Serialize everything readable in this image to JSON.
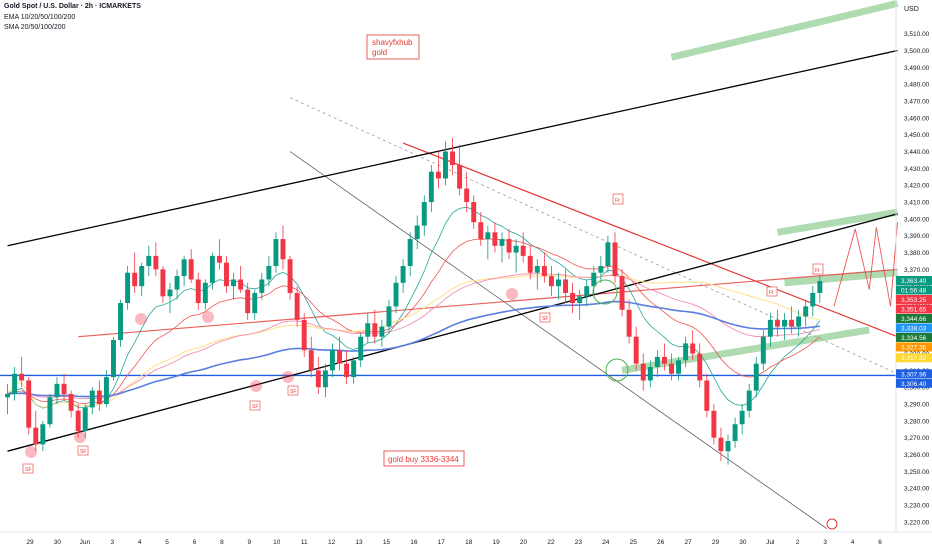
{
  "header": {
    "symbol_title": "Gold Spot / U.S. Dollar · 2h · ICMARKETS",
    "indicator_ema": "EMA 10/20/50/100/200",
    "indicator_sma": "SMA 20/50/100/200"
  },
  "currency": "USD",
  "annotations": {
    "author_line1": "shavyfxhub",
    "author_line2": "gold",
    "trade_note": "gold buy 3336-3344",
    "ft_marker": "Ft",
    "sf_marker": "SF"
  },
  "colors": {
    "background": "#ffffff",
    "up_candle": "#089981",
    "down_candle": "#f23645",
    "channel_line": "#000000",
    "trend_red": "#e53935",
    "ema_blue": "#5b7fe0",
    "support_blue": "#1e5ee0",
    "green_zone": "#4caf50",
    "dashed_gray": "#9e9e9e",
    "sma_yellow": "#ffe082"
  },
  "chart_data": {
    "type": "candlestick",
    "instrument": "Gold Spot / U.S. Dollar",
    "timeframe": "2h",
    "y_axis": {
      "label": "USD",
      "range": [
        3214,
        3530
      ],
      "ticks": [
        3220,
        3230,
        3240,
        3250,
        3260,
        3270,
        3280,
        3290,
        3300,
        3310,
        3320,
        3330,
        3340,
        3350,
        3360,
        3370,
        3380,
        3390,
        3400,
        3410,
        3420,
        3430,
        3440,
        3450,
        3460,
        3470,
        3480,
        3490,
        3500,
        3510
      ],
      "tick_labels": [
        "3,220.00",
        "3,230.00",
        "3,240.00",
        "3,250.00",
        "3,260.00",
        "3,270.00",
        "3,280.00",
        "3,290.00",
        "3,300.00",
        "3,310.00",
        "3,320.00",
        "3,330.00",
        "3,340.00",
        "3,350.00",
        "3,360.00",
        "3,370.00",
        "3,380.00",
        "3,390.00",
        "3,400.00",
        "3,410.00",
        "3,420.00",
        "3,430.00",
        "3,440.00",
        "3,450.00",
        "3,460.00",
        "3,470.00",
        "3,480.00",
        "3,490.00",
        "3,500.00",
        "3,510.00"
      ]
    },
    "x_axis": {
      "dates": [
        "29",
        "30",
        "Jun",
        "3",
        "4",
        "5",
        "6",
        "8",
        "9",
        "10",
        "11",
        "12",
        "13",
        "15",
        "16",
        "17",
        "18",
        "19",
        "20",
        "22",
        "23",
        "24",
        "25",
        "26",
        "27",
        "29",
        "30",
        "Jul",
        "2",
        "3",
        "4",
        "6"
      ]
    },
    "price_labels": [
      {
        "value": 3363.4,
        "text": "3,363.40",
        "color": "#089981"
      },
      {
        "value": 3361.5,
        "text": "01:56:48",
        "color": "#089981"
      },
      {
        "value": 3353.25,
        "text": "3,353.25",
        "color": "#f23645"
      },
      {
        "value": 3351.65,
        "text": "3,351.65",
        "color": "#f23645"
      },
      {
        "value": 3344.66,
        "text": "3,344.66",
        "color": "#1b7a3a"
      },
      {
        "value": 3338.03,
        "text": "3,338.03",
        "color": "#2196f3"
      },
      {
        "value": 3334.56,
        "text": "3,334.56",
        "color": "#1b7a3a"
      },
      {
        "value": 3327.36,
        "text": "3,327.36",
        "color": "#ff9800"
      },
      {
        "value": 3317.52,
        "text": "3,317.52",
        "color": "#fdd835"
      },
      {
        "value": 3307.96,
        "text": "3,307.96",
        "color": "#1e5ee0"
      },
      {
        "value": 3306.4,
        "text": "3,306.40",
        "color": "#1e5ee0"
      }
    ],
    "ohlc": [
      [
        3294,
        3302,
        3284,
        3296
      ],
      [
        3296,
        3312,
        3292,
        3308
      ],
      [
        3308,
        3318,
        3300,
        3304
      ],
      [
        3304,
        3306,
        3272,
        3276
      ],
      [
        3276,
        3286,
        3262,
        3266
      ],
      [
        3266,
        3280,
        3262,
        3278
      ],
      [
        3278,
        3296,
        3276,
        3294
      ],
      [
        3294,
        3306,
        3290,
        3302
      ],
      [
        3302,
        3308,
        3292,
        3296
      ],
      [
        3296,
        3298,
        3282,
        3286
      ],
      [
        3286,
        3290,
        3270,
        3274
      ],
      [
        3274,
        3290,
        3270,
        3288
      ],
      [
        3288,
        3300,
        3284,
        3298
      ],
      [
        3298,
        3304,
        3286,
        3290
      ],
      [
        3290,
        3310,
        3288,
        3306
      ],
      [
        3306,
        3330,
        3304,
        3328
      ],
      [
        3328,
        3352,
        3324,
        3350
      ],
      [
        3350,
        3372,
        3346,
        3368
      ],
      [
        3368,
        3380,
        3356,
        3360
      ],
      [
        3360,
        3374,
        3354,
        3372
      ],
      [
        3372,
        3384,
        3366,
        3378
      ],
      [
        3378,
        3386,
        3366,
        3370
      ],
      [
        3370,
        3372,
        3350,
        3354
      ],
      [
        3354,
        3362,
        3344,
        3358
      ],
      [
        3358,
        3370,
        3352,
        3366
      ],
      [
        3366,
        3378,
        3360,
        3376
      ],
      [
        3376,
        3382,
        3362,
        3364
      ],
      [
        3364,
        3368,
        3346,
        3350
      ],
      [
        3350,
        3364,
        3346,
        3362
      ],
      [
        3362,
        3380,
        3358,
        3378
      ],
      [
        3378,
        3388,
        3370,
        3374
      ],
      [
        3374,
        3378,
        3356,
        3360
      ],
      [
        3360,
        3368,
        3352,
        3364
      ],
      [
        3364,
        3372,
        3356,
        3358
      ],
      [
        3358,
        3362,
        3340,
        3344
      ],
      [
        3344,
        3358,
        3340,
        3356
      ],
      [
        3356,
        3368,
        3352,
        3364
      ],
      [
        3364,
        3378,
        3360,
        3372
      ],
      [
        3372,
        3392,
        3368,
        3388
      ],
      [
        3388,
        3396,
        3370,
        3376
      ],
      [
        3376,
        3378,
        3352,
        3356
      ],
      [
        3356,
        3360,
        3336,
        3340
      ],
      [
        3340,
        3344,
        3318,
        3322
      ],
      [
        3322,
        3330,
        3306,
        3310
      ],
      [
        3310,
        3318,
        3296,
        3300
      ],
      [
        3300,
        3314,
        3294,
        3310
      ],
      [
        3310,
        3326,
        3306,
        3322
      ],
      [
        3322,
        3330,
        3310,
        3314
      ],
      [
        3314,
        3322,
        3302,
        3306
      ],
      [
        3306,
        3318,
        3302,
        3316
      ],
      [
        3316,
        3332,
        3312,
        3330
      ],
      [
        3330,
        3344,
        3326,
        3338
      ],
      [
        3338,
        3346,
        3326,
        3330
      ],
      [
        3330,
        3340,
        3324,
        3336
      ],
      [
        3336,
        3352,
        3332,
        3348
      ],
      [
        3348,
        3366,
        3344,
        3362
      ],
      [
        3362,
        3376,
        3356,
        3372
      ],
      [
        3372,
        3392,
        3366,
        3388
      ],
      [
        3388,
        3402,
        3382,
        3396
      ],
      [
        3396,
        3414,
        3390,
        3410
      ],
      [
        3410,
        3432,
        3404,
        3428
      ],
      [
        3428,
        3440,
        3418,
        3424
      ],
      [
        3424,
        3446,
        3420,
        3440
      ],
      [
        3440,
        3448,
        3426,
        3432
      ],
      [
        3432,
        3444,
        3414,
        3418
      ],
      [
        3418,
        3428,
        3404,
        3410
      ],
      [
        3410,
        3414,
        3394,
        3398
      ],
      [
        3398,
        3404,
        3384,
        3388
      ],
      [
        3388,
        3396,
        3376,
        3392
      ],
      [
        3392,
        3398,
        3380,
        3384
      ],
      [
        3384,
        3392,
        3374,
        3388
      ],
      [
        3388,
        3394,
        3376,
        3380
      ],
      [
        3380,
        3388,
        3368,
        3384
      ],
      [
        3384,
        3392,
        3374,
        3378
      ],
      [
        3378,
        3384,
        3364,
        3368
      ],
      [
        3368,
        3376,
        3358,
        3372
      ],
      [
        3372,
        3380,
        3362,
        3366
      ],
      [
        3366,
        3372,
        3354,
        3360
      ],
      [
        3360,
        3368,
        3352,
        3364
      ],
      [
        3364,
        3370,
        3350,
        3356
      ],
      [
        3356,
        3362,
        3344,
        3350
      ],
      [
        3350,
        3358,
        3340,
        3354
      ],
      [
        3354,
        3364,
        3348,
        3360
      ],
      [
        3360,
        3372,
        3354,
        3368
      ],
      [
        3368,
        3378,
        3362,
        3372
      ],
      [
        3372,
        3390,
        3368,
        3386
      ],
      [
        3386,
        3392,
        3362,
        3366
      ],
      [
        3366,
        3370,
        3342,
        3346
      ],
      [
        3346,
        3352,
        3326,
        3330
      ],
      [
        3330,
        3336,
        3310,
        3314
      ],
      [
        3314,
        3320,
        3298,
        3304
      ],
      [
        3304,
        3316,
        3300,
        3312
      ],
      [
        3312,
        3322,
        3306,
        3318
      ],
      [
        3318,
        3326,
        3310,
        3314
      ],
      [
        3314,
        3320,
        3304,
        3308
      ],
      [
        3308,
        3318,
        3304,
        3316
      ],
      [
        3316,
        3330,
        3312,
        3326
      ],
      [
        3326,
        3334,
        3316,
        3320
      ],
      [
        3320,
        3326,
        3300,
        3304
      ],
      [
        3304,
        3308,
        3282,
        3286
      ],
      [
        3286,
        3290,
        3266,
        3270
      ],
      [
        3270,
        3276,
        3256,
        3262
      ],
      [
        3262,
        3272,
        3254,
        3268
      ],
      [
        3268,
        3282,
        3264,
        3278
      ],
      [
        3278,
        3290,
        3272,
        3286
      ],
      [
        3286,
        3302,
        3282,
        3298
      ],
      [
        3298,
        3318,
        3294,
        3314
      ],
      [
        3314,
        3334,
        3310,
        3330
      ],
      [
        3330,
        3344,
        3324,
        3340
      ],
      [
        3340,
        3346,
        3330,
        3336
      ],
      [
        3336,
        3344,
        3328,
        3340
      ],
      [
        3340,
        3348,
        3332,
        3336
      ],
      [
        3336,
        3346,
        3330,
        3342
      ],
      [
        3342,
        3352,
        3336,
        3348
      ],
      [
        3348,
        3360,
        3342,
        3356
      ],
      [
        3356,
        3366,
        3350,
        3363
      ]
    ],
    "structures": {
      "channel_upper": [
        [
          0,
          3384
        ],
        [
          125,
          3500
        ]
      ],
      "channel_lower": [
        [
          0,
          3262
        ],
        [
          125,
          3403
        ]
      ],
      "channel_mid": [
        [
          77,
          3336
        ],
        [
          125,
          3390
        ]
      ],
      "descending_red": [
        [
          56,
          3445
        ],
        [
          125,
          3330
        ]
      ],
      "diag_dashed_upper": [
        [
          40,
          3472
        ],
        [
          125,
          3308
        ]
      ],
      "diag_dashed_lower": [
        [
          40,
          3440
        ],
        [
          115,
          3216
        ]
      ],
      "flat_red": [
        [
          10,
          3330
        ],
        [
          125,
          3370
        ]
      ],
      "support_blue": 3307,
      "green_zones": [
        {
          "from": [
            87,
            3310
          ],
          "to": [
            121,
            3334
          ]
        },
        {
          "from": [
            109,
            3392
          ],
          "to": [
            125,
            3404
          ]
        },
        {
          "from": [
            110,
            3362
          ],
          "to": [
            125,
            3368
          ]
        },
        {
          "from": [
            94,
            3496
          ],
          "to": [
            125,
            3528
          ]
        }
      ],
      "projection": [
        [
          116,
          3348
        ],
        [
          119,
          3394
        ],
        [
          121,
          3358
        ],
        [
          122,
          3395
        ],
        [
          124,
          3348
        ],
        [
          125,
          3398
        ]
      ]
    }
  }
}
